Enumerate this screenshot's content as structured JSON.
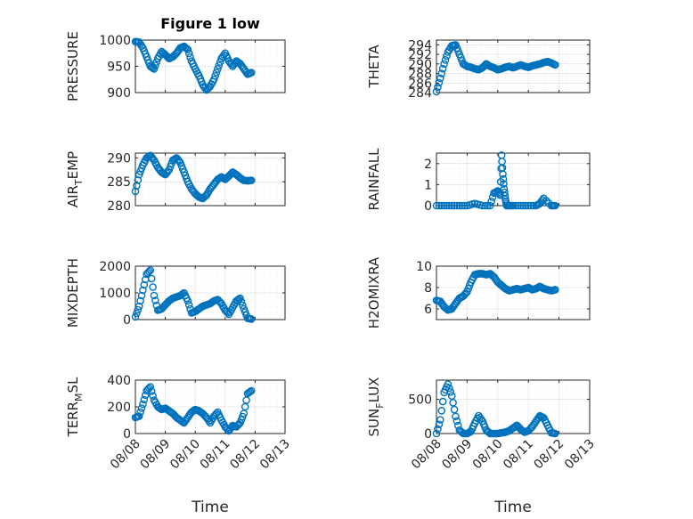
{
  "colors": {
    "marker": "#0072BD",
    "axis": "#262626"
  },
  "figure_title": "Figure 1 low",
  "chart_data": [
    {
      "id": "pressure",
      "type": "scatter",
      "title": "Figure 1 low",
      "ylabel": "PRESSURE",
      "ylim": [
        900,
        1000
      ],
      "yticks": [
        "1000",
        "950",
        "900"
      ],
      "ytick_values": [
        1000,
        950,
        900
      ],
      "x": [
        "08/08 00:00",
        "08/08 03:00",
        "08/08 06:00",
        "08/08 09:00",
        "08/08 12:00",
        "08/08 15:00",
        "08/08 18:00",
        "08/08 21:00",
        "08/09 00:00",
        "08/09 03:00",
        "08/09 06:00",
        "08/09 09:00",
        "08/09 12:00",
        "08/09 15:00",
        "08/09 18:00",
        "08/09 21:00",
        "08/10 00:00",
        "08/10 03:00",
        "08/10 06:00",
        "08/10 09:00",
        "08/10 12:00",
        "08/10 15:00",
        "08/10 18:00",
        "08/10 21:00",
        "08/11 00:00",
        "08/11 03:00",
        "08/11 06:00",
        "08/11 09:00",
        "08/11 12:00",
        "08/11 15:00",
        "08/11 18:00",
        "08/11 21:00"
      ],
      "y": [
        997,
        996,
        985,
        968,
        950,
        945,
        965,
        978,
        972,
        965,
        968,
        975,
        985,
        988,
        982,
        960,
        945,
        932,
        915,
        905,
        912,
        925,
        945,
        965,
        975,
        960,
        950,
        960,
        955,
        945,
        935,
        938
      ]
    },
    {
      "id": "theta",
      "type": "scatter",
      "ylabel": "THETA",
      "ylim": [
        284,
        295
      ],
      "yticks": [
        "294",
        "292",
        "290",
        "288",
        "286",
        "284"
      ],
      "ytick_values": [
        294,
        292,
        290,
        288,
        286,
        284
      ],
      "x": [
        "08/08 00:00",
        "08/08 03:00",
        "08/08 06:00",
        "08/08 09:00",
        "08/08 12:00",
        "08/08 15:00",
        "08/08 18:00",
        "08/08 21:00",
        "08/09 00:00",
        "08/09 03:00",
        "08/09 06:00",
        "08/09 09:00",
        "08/09 12:00",
        "08/09 15:00",
        "08/09 18:00",
        "08/09 21:00",
        "08/10 00:00",
        "08/10 03:00",
        "08/10 06:00",
        "08/10 09:00",
        "08/10 12:00",
        "08/10 15:00",
        "08/10 18:00",
        "08/10 21:00",
        "08/11 00:00",
        "08/11 03:00",
        "08/11 06:00",
        "08/11 09:00",
        "08/11 12:00",
        "08/11 15:00",
        "08/11 18:00",
        "08/11 21:00"
      ],
      "y": [
        284.2,
        287,
        290,
        292.5,
        293.8,
        294,
        292,
        290,
        289.5,
        289.3,
        289,
        288.8,
        289.2,
        290,
        289.5,
        289.2,
        288.8,
        289,
        289.3,
        289.5,
        289.2,
        289.5,
        289.8,
        289.5,
        289.3,
        289.6,
        289.8,
        290,
        290.3,
        290.5,
        290.2,
        289.8
      ]
    },
    {
      "id": "air_temp",
      "type": "scatter",
      "ylabel_main": "AIR",
      "ylabel_sub": "T",
      "ylabel_rest": "EMP",
      "ylim": [
        280,
        291
      ],
      "yticks": [
        "290",
        "285",
        "280"
      ],
      "ytick_values": [
        290,
        285,
        280
      ],
      "x": [
        "08/08 00:00",
        "08/08 03:00",
        "08/08 06:00",
        "08/08 09:00",
        "08/08 12:00",
        "08/08 15:00",
        "08/08 18:00",
        "08/08 21:00",
        "08/09 00:00",
        "08/09 03:00",
        "08/09 06:00",
        "08/09 09:00",
        "08/09 12:00",
        "08/09 15:00",
        "08/09 18:00",
        "08/09 21:00",
        "08/10 00:00",
        "08/10 03:00",
        "08/10 06:00",
        "08/10 09:00",
        "08/10 12:00",
        "08/10 15:00",
        "08/10 18:00",
        "08/10 21:00",
        "08/11 00:00",
        "08/11 03:00",
        "08/11 06:00",
        "08/11 09:00",
        "08/11 12:00",
        "08/11 15:00",
        "08/11 18:00",
        "08/11 21:00"
      ],
      "y": [
        283,
        286.5,
        288.5,
        290,
        290.5,
        289.5,
        288,
        287,
        286.5,
        287.5,
        289.5,
        290,
        289,
        287,
        285,
        283.5,
        282.5,
        281.8,
        281.5,
        282.2,
        283.5,
        284.5,
        285.5,
        286,
        285.5,
        286.2,
        287,
        286.5,
        285.8,
        285.3,
        285.2,
        285.3
      ]
    },
    {
      "id": "rainfall",
      "type": "scatter",
      "ylabel": "RAINFALL",
      "ylim": [
        0,
        2.5
      ],
      "yticks": [
        "2",
        "1",
        "0"
      ],
      "ytick_values": [
        2,
        1,
        0
      ],
      "x": [
        "08/08 00:00",
        "08/08 06:00",
        "08/08 12:00",
        "08/08 18:00",
        "08/09 00:00",
        "08/09 06:00",
        "08/09 12:00",
        "08/09 18:00",
        "08/09 21:00",
        "08/10 00:00",
        "08/10 02:00",
        "08/10 03:00",
        "08/10 04:00",
        "08/10 05:00",
        "08/10 06:00",
        "08/10 07:00",
        "08/10 09:00",
        "08/10 12:00",
        "08/10 18:00",
        "08/11 00:00",
        "08/11 06:00",
        "08/11 09:00",
        "08/11 12:00",
        "08/11 18:00",
        "08/11 21:00"
      ],
      "y": [
        0,
        0,
        0,
        0,
        0,
        0.1,
        0,
        0,
        0.6,
        0.7,
        0.5,
        2.4,
        1.5,
        0.8,
        0.3,
        0,
        0,
        0,
        0,
        0,
        0,
        0.1,
        0.35,
        0,
        0
      ]
    },
    {
      "id": "mixdepth",
      "type": "scatter",
      "ylabel": "MIXDEPTH",
      "ylim": [
        0,
        2000
      ],
      "yticks": [
        "2000",
        "1000",
        "0"
      ],
      "ytick_values": [
        2000,
        1000,
        0
      ],
      "x": [
        "08/08 00:00",
        "08/08 03:00",
        "08/08 06:00",
        "08/08 09:00",
        "08/08 12:00",
        "08/08 15:00",
        "08/08 18:00",
        "08/08 21:00",
        "08/09 00:00",
        "08/09 03:00",
        "08/09 06:00",
        "08/09 09:00",
        "08/09 12:00",
        "08/09 15:00",
        "08/09 18:00",
        "08/09 21:00",
        "08/10 00:00",
        "08/10 03:00",
        "08/10 06:00",
        "08/10 09:00",
        "08/10 12:00",
        "08/10 15:00",
        "08/10 18:00",
        "08/10 21:00",
        "08/11 00:00",
        "08/11 03:00",
        "08/11 06:00",
        "08/11 09:00",
        "08/11 12:00",
        "08/11 15:00",
        "08/11 18:00",
        "08/11 21:00"
      ],
      "y": [
        100,
        500,
        1100,
        1700,
        1850,
        900,
        350,
        400,
        550,
        700,
        800,
        850,
        900,
        1000,
        700,
        250,
        300,
        400,
        500,
        550,
        600,
        700,
        750,
        600,
        350,
        200,
        450,
        700,
        800,
        400,
        50,
        20
      ]
    },
    {
      "id": "h2omixra",
      "type": "scatter",
      "ylabel": "H2OMIXRA",
      "ylim": [
        5,
        10
      ],
      "yticks": [
        "10",
        "8",
        "6"
      ],
      "ytick_values": [
        10,
        8,
        6
      ],
      "x": [
        "08/08 00:00",
        "08/08 03:00",
        "08/08 06:00",
        "08/08 09:00",
        "08/08 12:00",
        "08/08 15:00",
        "08/08 18:00",
        "08/08 21:00",
        "08/09 00:00",
        "08/09 03:00",
        "08/09 06:00",
        "08/09 09:00",
        "08/09 12:00",
        "08/09 15:00",
        "08/09 18:00",
        "08/09 21:00",
        "08/10 00:00",
        "08/10 03:00",
        "08/10 06:00",
        "08/10 09:00",
        "08/10 12:00",
        "08/10 15:00",
        "08/10 18:00",
        "08/10 21:00",
        "08/11 00:00",
        "08/11 03:00",
        "08/11 06:00",
        "08/11 09:00",
        "08/11 12:00",
        "08/11 15:00",
        "08/11 18:00",
        "08/11 21:00"
      ],
      "y": [
        6.8,
        6.7,
        6.2,
        5.9,
        6.0,
        6.5,
        7.0,
        7.2,
        7.6,
        8.5,
        9.2,
        9.3,
        9.3,
        9.2,
        9.3,
        9.0,
        8.5,
        8.2,
        7.9,
        7.7,
        7.8,
        7.9,
        7.8,
        7.9,
        8.0,
        7.8,
        7.9,
        8.1,
        7.9,
        7.8,
        7.7,
        7.8
      ]
    },
    {
      "id": "terr_msl",
      "type": "scatter",
      "ylabel_main": "TERR",
      "ylabel_sub": "M",
      "ylabel_rest": "SL",
      "ylim": [
        0,
        400
      ],
      "yticks": [
        "400",
        "200",
        "0"
      ],
      "ytick_values": [
        400,
        200,
        0
      ],
      "x": [
        "08/08 00:00",
        "08/08 03:00",
        "08/08 06:00",
        "08/08 09:00",
        "08/08 12:00",
        "08/08 15:00",
        "08/08 18:00",
        "08/08 21:00",
        "08/09 00:00",
        "08/09 03:00",
        "08/09 06:00",
        "08/09 09:00",
        "08/09 12:00",
        "08/09 15:00",
        "08/09 18:00",
        "08/09 21:00",
        "08/10 00:00",
        "08/10 03:00",
        "08/10 06:00",
        "08/10 09:00",
        "08/10 12:00",
        "08/10 15:00",
        "08/10 18:00",
        "08/10 21:00",
        "08/11 00:00",
        "08/11 03:00",
        "08/11 06:00",
        "08/11 09:00",
        "08/11 12:00",
        "08/11 15:00",
        "08/11 18:00",
        "08/11 21:00"
      ],
      "y": [
        120,
        130,
        220,
        320,
        350,
        250,
        200,
        180,
        190,
        170,
        150,
        120,
        100,
        80,
        120,
        160,
        180,
        170,
        150,
        120,
        80,
        130,
        160,
        100,
        50,
        20,
        60,
        50,
        80,
        150,
        300,
        320
      ]
    },
    {
      "id": "sun_flux",
      "type": "scatter",
      "ylabel_main": "SUN",
      "ylabel_sub": "F",
      "ylabel_rest": "LUX",
      "ylim": [
        0,
        780
      ],
      "yticks": [
        "500",
        "0"
      ],
      "ytick_values": [
        500,
        0
      ],
      "x": [
        "08/08 00:00",
        "08/08 03:00",
        "08/08 06:00",
        "08/08 09:00",
        "08/08 12:00",
        "08/08 15:00",
        "08/08 18:00",
        "08/08 21:00",
        "08/09 00:00",
        "08/09 03:00",
        "08/09 06:00",
        "08/09 09:00",
        "08/09 12:00",
        "08/09 15:00",
        "08/09 18:00",
        "08/09 21:00",
        "08/10 00:00",
        "08/10 03:00",
        "08/10 06:00",
        "08/10 09:00",
        "08/10 12:00",
        "08/10 15:00",
        "08/10 18:00",
        "08/10 21:00",
        "08/11 00:00",
        "08/11 03:00",
        "08/11 06:00",
        "08/11 09:00",
        "08/11 12:00",
        "08/11 15:00",
        "08/11 18:00",
        "08/11 21:00"
      ],
      "y": [
        0,
        200,
        600,
        720,
        550,
        250,
        50,
        0,
        0,
        30,
        150,
        260,
        180,
        50,
        0,
        0,
        0,
        10,
        20,
        40,
        80,
        120,
        60,
        20,
        40,
        100,
        180,
        260,
        230,
        120,
        10,
        0
      ]
    }
  ],
  "xaxis": {
    "ticks": [
      "08/08",
      "08/09",
      "08/10",
      "08/11",
      "08/12",
      "08/13"
    ],
    "label": "Time"
  }
}
